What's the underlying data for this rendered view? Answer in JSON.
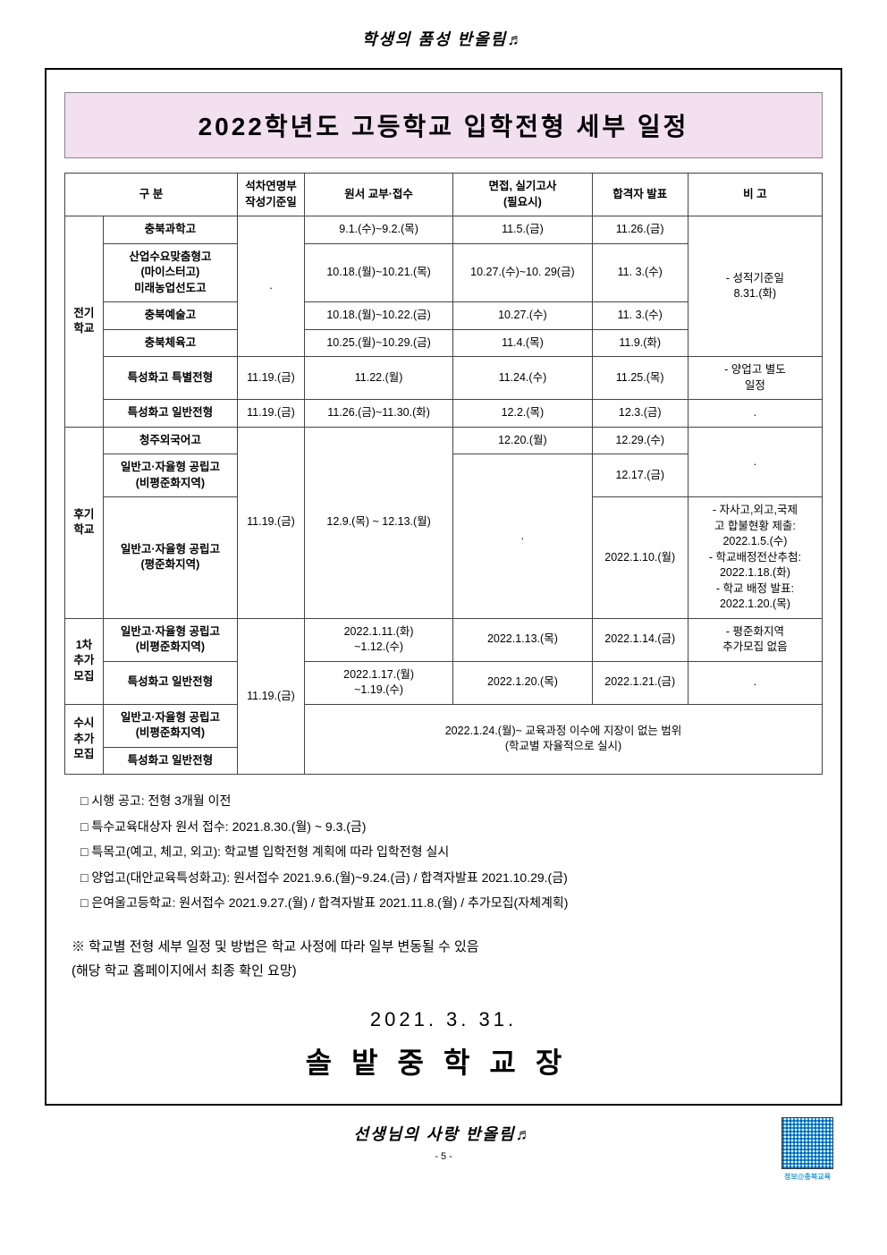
{
  "header_decoration": "학생의 품성 반올림♬",
  "title": "2022학년도 고등학교 입학전형 세부 일정",
  "table": {
    "headers": {
      "gubun": "구 분",
      "date_std": "석차연명부\n작성기준일",
      "application": "원서 교부·접수",
      "exam": "면접, 실기고사\n(필요시)",
      "announce": "합격자 발표",
      "note": "비 고"
    },
    "groups": {
      "g1": "전기\n학교",
      "g2": "후기\n학교",
      "g3": "1차\n추가\n모집",
      "g4": "수시\n추가\n모집"
    },
    "rows": {
      "r1": {
        "type": "충북과학고",
        "date": "",
        "app": "9.1.(수)~9.2.(목)",
        "exam": "11.5.(금)",
        "announce": "11.26.(금)"
      },
      "r2": {
        "type": "산업수요맞춤형고\n(마이스터고)\n미래농업선도고",
        "date": ".",
        "app": "10.18.(월)~10.21.(목)",
        "exam": "10.27.(수)~10. 29(금)",
        "announce": "11. 3.(수)"
      },
      "r3": {
        "type": "충북예술고",
        "app": "10.18.(월)~10.22.(금)",
        "exam": "10.27.(수)",
        "announce": "11. 3.(수)"
      },
      "r4": {
        "type": "충북체육고",
        "app": "10.25.(월)~10.29.(금)",
        "exam": "11.4.(목)",
        "announce": "11.9.(화)"
      },
      "r5": {
        "type": "특성화고 특별전형",
        "date": "11.19.(금)",
        "app": "11.22.(월)",
        "exam": "11.24.(수)",
        "announce": "11.25.(목)"
      },
      "r6": {
        "type": "특성화고 일반전형",
        "date": "11.19.(금)",
        "app": "11.26.(금)~11.30.(화)",
        "exam": "12.2.(목)",
        "announce": "12.3.(금)",
        "note": "."
      },
      "note_g1": "- 성적기준일\n8.31.(화)",
      "note_r5": "- 양업고 별도\n일정",
      "r7": {
        "type": "청주외국어고",
        "exam": "12.20.(월)",
        "announce": "12.29.(수)"
      },
      "r8": {
        "type": "일반고·자율형 공립고\n(비평준화지역)",
        "announce": "12.17.(금)",
        "note": "."
      },
      "r9": {
        "type": "일반고·자율형 공립고\n(평준화지역)",
        "date": "11.19.(금)",
        "app": "12.9.(목) ~ 12.13.(월)",
        "exam": ".",
        "announce": "2022.1.10.(월)"
      },
      "note_r9": "- 자사고,외고,국제\n고 합불현황 제출:\n2022.1.5.(수)\n- 학교배정전산추첨:\n2022.1.18.(화)\n- 학교 배정 발표:\n2022.1.20.(목)",
      "r10": {
        "type": "일반고·자율형 공립고\n(비평준화지역)",
        "app": "2022.1.11.(화)\n~1.12.(수)",
        "exam": "2022.1.13.(목)",
        "announce": "2022.1.14.(금)"
      },
      "note_r10": "- 평준화지역\n추가모집 없음",
      "r11": {
        "type": "특성화고 일반전형",
        "date": "11.19.(금)",
        "app": "2022.1.17.(월)\n~1.19.(수)",
        "exam": "2022.1.20.(목)",
        "announce": "2022.1.21.(금)",
        "note": "."
      },
      "r12": {
        "type": "일반고·자율형 공립고\n(비평준화지역)"
      },
      "r13": {
        "type": "특성화고 일반전형"
      },
      "merged_susi": "2022.1.24.(월)~ 교육과정 이수에 지장이 없는 범위\n(학교별 자율적으로 실시)"
    }
  },
  "notes": [
    "□ 시행 공고: 전형 3개월 이전",
    "□ 특수교육대상자 원서 접수: 2021.8.30.(월) ~ 9.3.(금)",
    "□ 특목고(예고, 체고, 외고): 학교별 입학전형 계획에 따라 입학전형 실시",
    "□ 양업고(대안교육특성화고): 원서접수 2021.9.6.(월)~9.24.(금) / 합격자발표 2021.10.29.(금)",
    "□ 은여울고등학교: 원서접수  2021.9.27.(월) / 합격자발표  2021.11.8.(월) / 추가모집(자체계획)"
  ],
  "footnote1": "※ 학교별 전형 세부 일정 및 방법은 학교 사정에 따라 일부 변동될 수 있음",
  "footnote2": "   (해당 학교 홈페이지에서 최종 확인 요망)",
  "doc_date": "2021. 3. 31.",
  "signature": "솔밭중학교장",
  "footer_decoration": "선생님의 사랑 반올림♬",
  "page_num": "- 5 -",
  "qr_label": "정보@충북교육"
}
